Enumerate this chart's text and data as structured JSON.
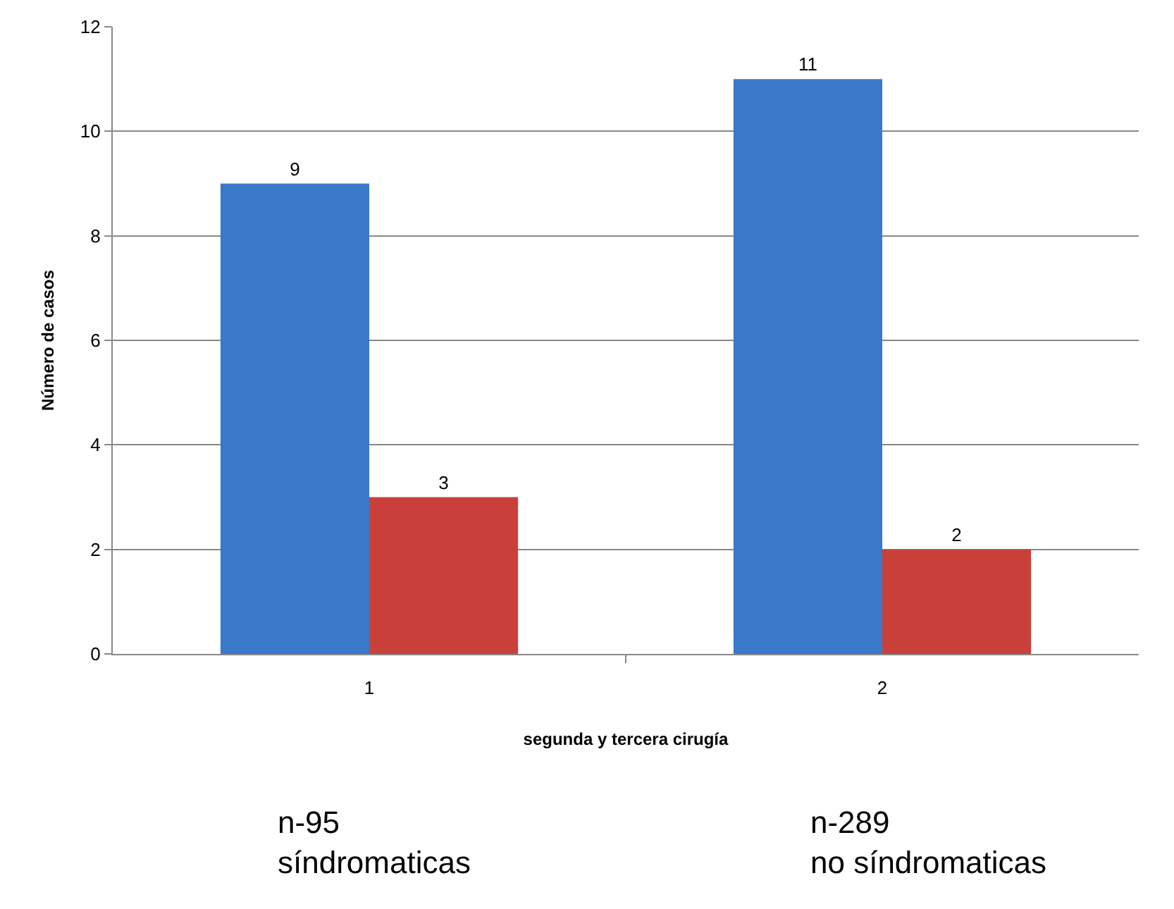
{
  "chart_data": {
    "type": "bar",
    "xlabel": "segunda y tercera cirugía",
    "ylabel": "Número de casos",
    "categories": [
      "1",
      "2"
    ],
    "series": [
      {
        "color": "#3a78c9",
        "values": [
          9,
          11
        ]
      },
      {
        "color": "#c9403a",
        "values": [
          3,
          2
        ]
      }
    ],
    "ylim": [
      0,
      12
    ],
    "yticks": [
      0,
      2,
      4,
      6,
      8,
      10,
      12
    ],
    "grid": "y",
    "data_labels": true,
    "annotations": [
      "n-95\nsíndromaticas",
      "n-289\nno síndromaticas"
    ]
  }
}
